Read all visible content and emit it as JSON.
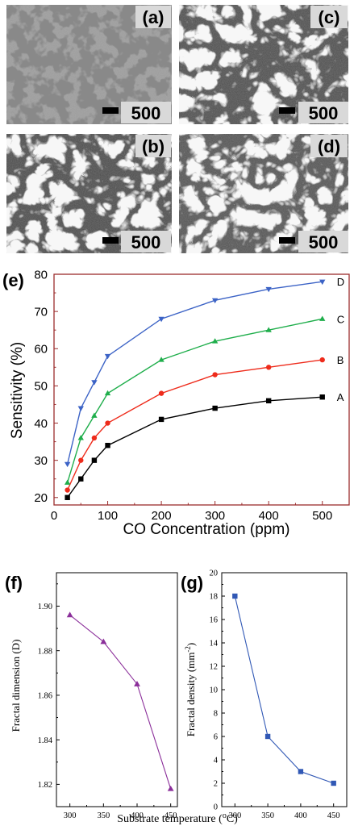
{
  "micrographs": [
    {
      "label": "(a)",
      "scale": "500"
    },
    {
      "label": "(c)",
      "scale": "500"
    },
    {
      "label": "(b)",
      "scale": "500"
    },
    {
      "label": "(d)",
      "scale": "500"
    }
  ],
  "chart_data": [
    {
      "panel": "(e)",
      "type": "line",
      "xlabel": "CO Concentration (ppm)",
      "ylabel": "Sensitivity (%)",
      "xlim": [
        0,
        550
      ],
      "ylim": [
        18,
        80
      ],
      "xticks": [
        "0",
        "100",
        "200",
        "300",
        "400",
        "500"
      ],
      "yticks": [
        "20",
        "30",
        "40",
        "50",
        "60",
        "70",
        "80"
      ],
      "x": [
        25,
        50,
        75,
        100,
        200,
        300,
        400,
        500
      ],
      "series": [
        {
          "name": "A",
          "marker": "square",
          "color": "#000000",
          "values": [
            20,
            25,
            30,
            34,
            41,
            44,
            46,
            47
          ]
        },
        {
          "name": "B",
          "marker": "circle",
          "color": "#ee2b1b",
          "values": [
            22,
            30,
            36,
            40,
            48,
            53,
            55,
            57
          ]
        },
        {
          "name": "C",
          "marker": "triangle-up",
          "color": "#1fae4b",
          "values": [
            24,
            36,
            42,
            48,
            57,
            62,
            65,
            68
          ]
        },
        {
          "name": "D",
          "marker": "triangle-down",
          "color": "#3c63c6",
          "values": [
            29,
            44,
            51,
            58,
            68,
            73,
            76,
            78
          ]
        }
      ],
      "frame_color": "#9b2c2c",
      "grid": false
    },
    {
      "panel": "(f)",
      "type": "line",
      "xlabel": "",
      "ylabel": "Fractal dimension (D)",
      "xlim": [
        280,
        460
      ],
      "ylim": [
        1.81,
        1.915
      ],
      "xticks": [
        "300",
        "350",
        "400",
        "450"
      ],
      "yticks": [
        "1.82",
        "1.84",
        "1.86",
        "1.88",
        "1.90"
      ],
      "x": [
        300,
        350,
        400,
        450
      ],
      "series": [
        {
          "marker": "triangle-up",
          "color": "#8b2f9a",
          "values": [
            1.896,
            1.884,
            1.865,
            1.818
          ]
        }
      ],
      "grid": false
    },
    {
      "panel": "(g)",
      "type": "line",
      "xlabel": "",
      "ylabel": "Fractal density (mm",
      "ylabel_sup": "-2",
      "ylabel_end": ")",
      "xlim": [
        280,
        470
      ],
      "ylim": [
        0,
        20
      ],
      "xticks": [
        "300",
        "350",
        "400",
        "450"
      ],
      "yticks": [
        "0",
        "2",
        "4",
        "6",
        "8",
        "10",
        "12",
        "14",
        "16",
        "18",
        "20"
      ],
      "x": [
        300,
        350,
        400,
        450
      ],
      "series": [
        {
          "marker": "square",
          "color": "#3158b5",
          "values": [
            18,
            6,
            3,
            2
          ]
        }
      ],
      "grid": false
    }
  ],
  "shared_xlabel": {
    "text": "Substrate temperature (",
    "sup": "o",
    "end": "C)"
  }
}
